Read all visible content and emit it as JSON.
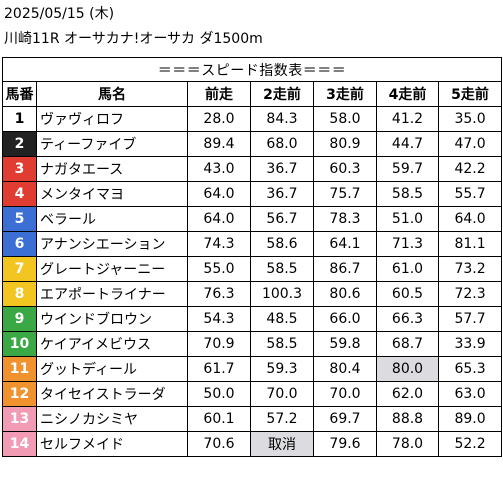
{
  "header": {
    "date": "2025/05/15 (木)",
    "race": "川崎11R オーサカナ!オーサカ ダ1500m"
  },
  "table": {
    "title": "＝＝＝スピード指数表＝＝＝",
    "columns": [
      "馬番",
      "馬名",
      "前走",
      "2走前",
      "3走前",
      "4走前",
      "5走前"
    ],
    "rows": [
      {
        "num": "1",
        "name": "ヴァヴィロフ",
        "vals": [
          "28.0",
          "84.3",
          "58.0",
          "41.2",
          "35.0"
        ],
        "bg": "#ffffff",
        "fg": "#000000"
      },
      {
        "num": "2",
        "name": "ティーファイブ",
        "vals": [
          "89.4",
          "68.0",
          "80.9",
          "44.7",
          "47.0"
        ],
        "bg": "#222222",
        "fg": "#ffffff"
      },
      {
        "num": "3",
        "name": "ナガタエース",
        "vals": [
          "43.0",
          "36.7",
          "60.3",
          "59.7",
          "42.2"
        ],
        "bg": "#e03c31",
        "fg": "#ffffff"
      },
      {
        "num": "4",
        "name": "メンタイマヨ",
        "vals": [
          "64.0",
          "36.7",
          "75.7",
          "58.5",
          "55.7"
        ],
        "bg": "#e03c31",
        "fg": "#ffffff"
      },
      {
        "num": "5",
        "name": "ベラール",
        "vals": [
          "64.0",
          "56.7",
          "78.3",
          "51.0",
          "64.0"
        ],
        "bg": "#3b6fd4",
        "fg": "#ffffff"
      },
      {
        "num": "6",
        "name": "アナンシエーション",
        "vals": [
          "74.3",
          "58.6",
          "64.1",
          "71.3",
          "81.1"
        ],
        "bg": "#3b6fd4",
        "fg": "#ffffff"
      },
      {
        "num": "7",
        "name": "グレートジャーニー",
        "vals": [
          "55.0",
          "58.5",
          "86.7",
          "61.0",
          "73.2"
        ],
        "bg": "#f2c521",
        "fg": "#ffffff"
      },
      {
        "num": "8",
        "name": "エアポートライナー",
        "vals": [
          "76.3",
          "100.3",
          "80.6",
          "60.5",
          "72.3"
        ],
        "bg": "#f2c521",
        "fg": "#ffffff"
      },
      {
        "num": "9",
        "name": "ウインドブロウン",
        "vals": [
          "54.3",
          "48.5",
          "66.0",
          "66.3",
          "57.7"
        ],
        "bg": "#3aa845",
        "fg": "#ffffff"
      },
      {
        "num": "10",
        "name": "ケイアイメビウス",
        "vals": [
          "70.9",
          "58.5",
          "59.8",
          "68.7",
          "33.9"
        ],
        "bg": "#3aa845",
        "fg": "#ffffff"
      },
      {
        "num": "11",
        "name": "グットディール",
        "vals": [
          "61.7",
          "59.3",
          "80.4",
          "80.0",
          "65.3"
        ],
        "bg": "#f0922d",
        "fg": "#ffffff",
        "hl": 3
      },
      {
        "num": "12",
        "name": "タイセイストラーダ",
        "vals": [
          "50.0",
          "70.0",
          "70.0",
          "62.0",
          "63.0"
        ],
        "bg": "#f0922d",
        "fg": "#ffffff"
      },
      {
        "num": "13",
        "name": "ニシノカシミヤ",
        "vals": [
          "60.1",
          "57.2",
          "69.7",
          "88.8",
          "89.0"
        ],
        "bg": "#f29bb5",
        "fg": "#ffffff"
      },
      {
        "num": "14",
        "name": "セルフメイド",
        "vals": [
          "70.6",
          "取消",
          "79.6",
          "78.0",
          "52.2"
        ],
        "bg": "#f29bb5",
        "fg": "#ffffff",
        "sc": 1
      }
    ]
  }
}
